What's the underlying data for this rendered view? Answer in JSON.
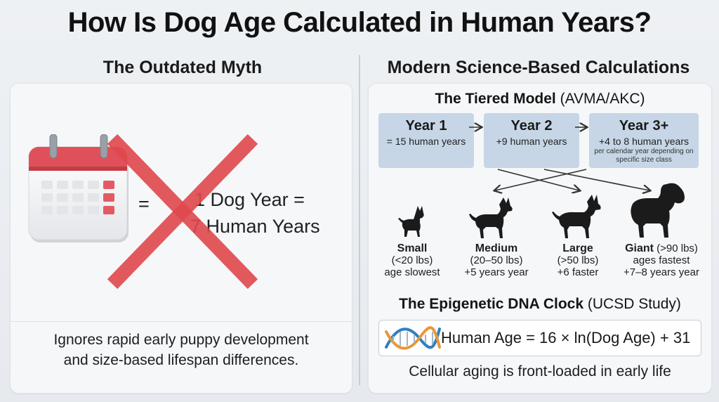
{
  "title": "How Is Dog Age Calculated in Human Years?",
  "left": {
    "title": "The Outdated Myth",
    "equals_sign": "=",
    "myth_line1": "1 Dog Year =",
    "myth_line2": "7 Human Years",
    "caption_line1": "Ignores rapid early puppy development",
    "caption_line2": "and size-based lifespan differences."
  },
  "right": {
    "title": "Modern Science-Based Calculations",
    "tiered": {
      "title_bold": "The Tiered Model",
      "title_paren": "(AVMA/AKC)",
      "tiers": [
        {
          "head": "Year 1",
          "sub": "= 15 human years",
          "note": ""
        },
        {
          "head": "Year 2",
          "sub": "+9 human years",
          "note": ""
        },
        {
          "head": "Year 3+",
          "sub": "+4 to 8 human years",
          "note": "per calendar year depending on specific size class"
        }
      ]
    },
    "sizes": [
      {
        "name": "Small",
        "range": "(<20 lbs)",
        "desc": "age  slowest"
      },
      {
        "name": "Medium",
        "range": "(20–50 lbs)",
        "desc": "+5 years year"
      },
      {
        "name": "Large",
        "range": "(>50 lbs)",
        "desc": "+6 faster"
      },
      {
        "name": "Giant",
        "range": "(>90 lbs)",
        "desc": "ages fastest",
        "desc2": "+7–8 years year"
      }
    ],
    "epigenetic": {
      "title_bold": "The Epigenetic DNA Clock",
      "title_paren": "(UCSD Study)",
      "formula": "Human Age = 16 × ln(Dog Age) + 31",
      "caption": "Cellular aging is front-loaded in early life"
    }
  },
  "colors": {
    "accent_red": "#e0484d",
    "tier_blue": "#c6d6e6",
    "dna_blue": "#2f7fc1",
    "dna_orange": "#e8973a"
  },
  "icons": [
    "calendar-icon",
    "red-cross-icon",
    "small-dog-icon",
    "medium-dog-icon",
    "large-dog-icon",
    "giant-dog-icon",
    "dna-icon"
  ]
}
